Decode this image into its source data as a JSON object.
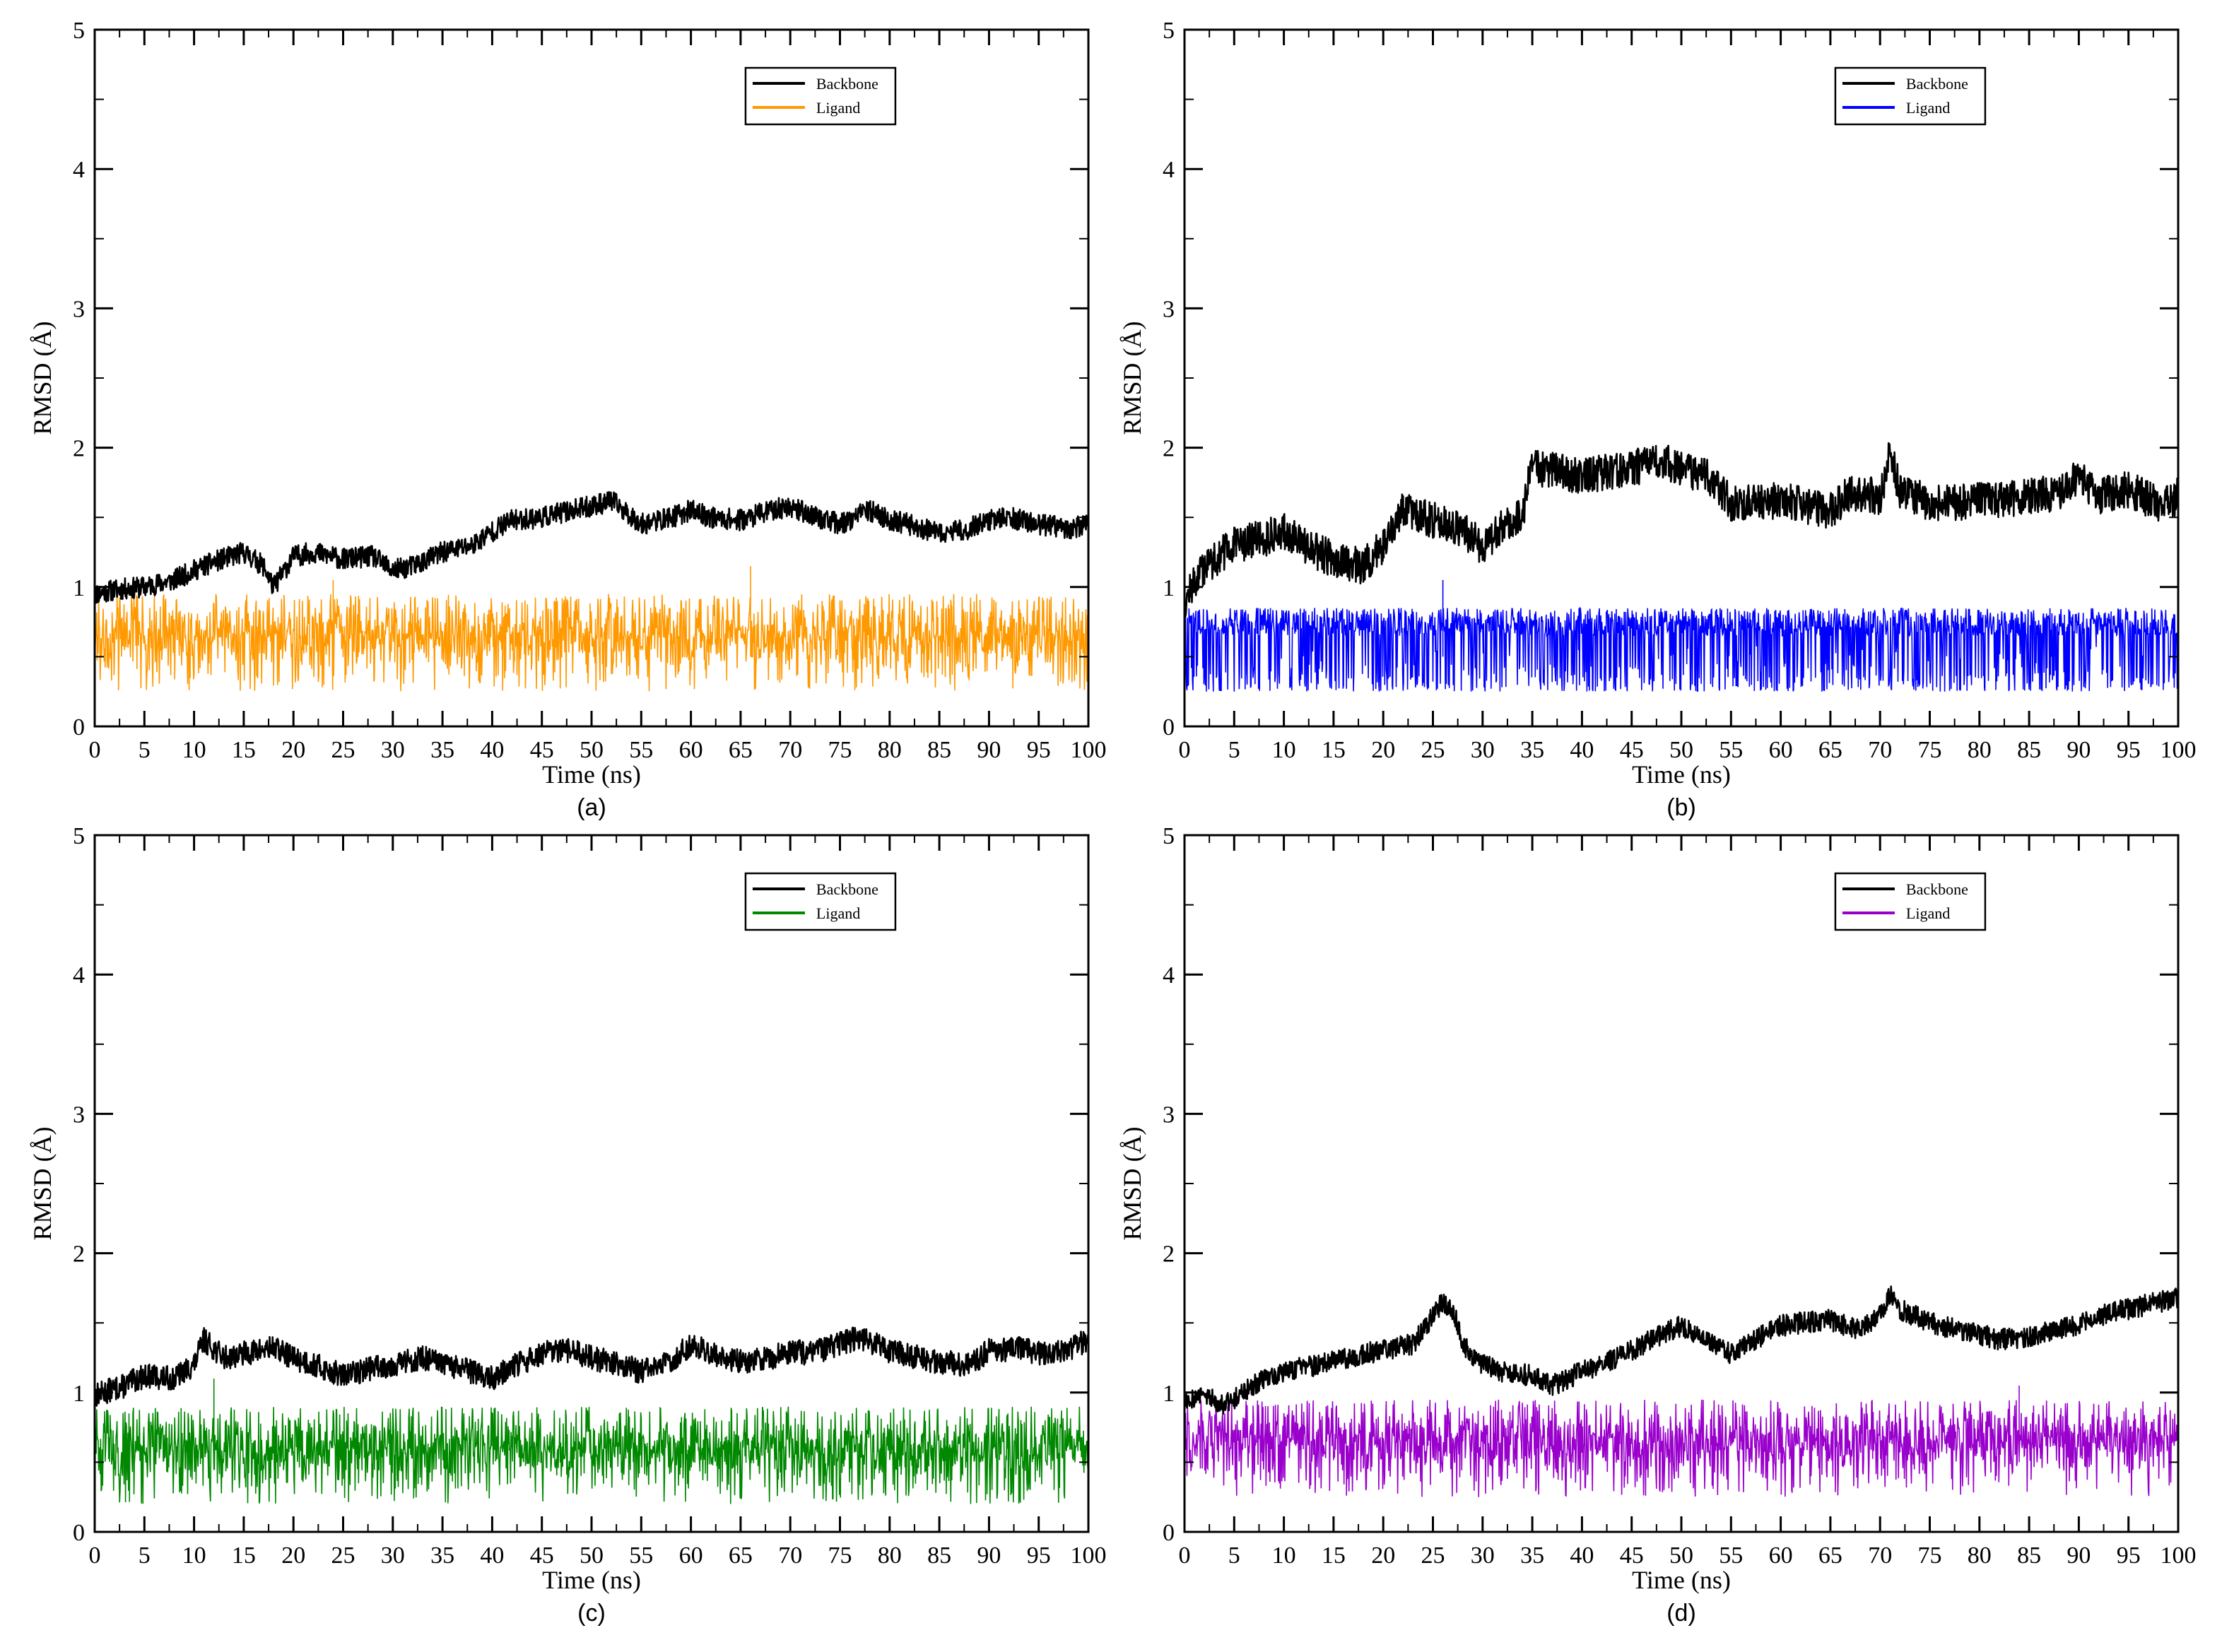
{
  "chart_data": [
    {
      "type": "line",
      "caption": "(a)",
      "xlabel": "Time (ns)",
      "ylabel": "RMSD (Å)",
      "xlim": [
        0,
        100
      ],
      "ylim": [
        0,
        5
      ],
      "xticks": [
        0,
        5,
        10,
        15,
        20,
        25,
        30,
        35,
        40,
        45,
        50,
        55,
        60,
        65,
        70,
        75,
        80,
        85,
        90,
        95,
        100
      ],
      "yticks": [
        0,
        1,
        2,
        3,
        4,
        5
      ],
      "legend_position": "top-right",
      "series": [
        {
          "name": "Backbone",
          "color": "#000000",
          "noise": 0.035,
          "seed": 11,
          "x": [
            0,
            2,
            5,
            8,
            10,
            12,
            15,
            17,
            18,
            20,
            22,
            25,
            28,
            30,
            32,
            35,
            38,
            40,
            42,
            45,
            48,
            50,
            52,
            55,
            58,
            60,
            62,
            65,
            68,
            70,
            72,
            75,
            78,
            80,
            82,
            85,
            88,
            90,
            92,
            95,
            98,
            100
          ],
          "y": [
            0.95,
            0.98,
            1.0,
            1.05,
            1.12,
            1.18,
            1.25,
            1.15,
            1.0,
            1.22,
            1.25,
            1.2,
            1.22,
            1.12,
            1.15,
            1.25,
            1.3,
            1.4,
            1.48,
            1.5,
            1.55,
            1.58,
            1.62,
            1.45,
            1.5,
            1.55,
            1.5,
            1.48,
            1.55,
            1.58,
            1.52,
            1.45,
            1.55,
            1.48,
            1.45,
            1.38,
            1.42,
            1.48,
            1.5,
            1.45,
            1.42,
            1.45
          ]
        },
        {
          "name": "Ligand",
          "color": "#FF9900",
          "band": [
            0.25,
            0.95
          ],
          "seed": 21,
          "spikes": [
            [
              24,
              1.05
            ],
            [
              66,
              1.15
            ]
          ],
          "x": [
            0,
            100
          ],
          "y": [
            0.6,
            0.6
          ]
        }
      ]
    },
    {
      "type": "line",
      "caption": "(b)",
      "xlabel": "Time (ns)",
      "ylabel": "RMSD (Å)",
      "xlim": [
        0,
        100
      ],
      "ylim": [
        0,
        5
      ],
      "xticks": [
        0,
        5,
        10,
        15,
        20,
        25,
        30,
        35,
        40,
        45,
        50,
        55,
        60,
        65,
        70,
        75,
        80,
        85,
        90,
        95,
        100
      ],
      "yticks": [
        0,
        1,
        2,
        3,
        4,
        5
      ],
      "legend_position": "top-right",
      "series": [
        {
          "name": "Backbone",
          "color": "#000000",
          "noise": 0.06,
          "seed": 12,
          "x": [
            0,
            2,
            5,
            8,
            10,
            12,
            15,
            18,
            20,
            21,
            22,
            25,
            28,
            30,
            32,
            34,
            35,
            36,
            40,
            45,
            48,
            50,
            53,
            55,
            60,
            65,
            67,
            70,
            71,
            72,
            75,
            80,
            85,
            88,
            90,
            92,
            95,
            98,
            100
          ],
          "y": [
            0.9,
            1.15,
            1.3,
            1.35,
            1.4,
            1.3,
            1.2,
            1.15,
            1.3,
            1.45,
            1.55,
            1.48,
            1.42,
            1.28,
            1.45,
            1.5,
            1.9,
            1.85,
            1.8,
            1.85,
            1.92,
            1.85,
            1.78,
            1.6,
            1.62,
            1.55,
            1.68,
            1.65,
            1.95,
            1.7,
            1.6,
            1.62,
            1.65,
            1.68,
            1.8,
            1.65,
            1.7,
            1.6,
            1.65
          ]
        },
        {
          "name": "Ligand",
          "color": "#0000FF",
          "bimodal": [
            0.65,
            0.85,
            0.25
          ],
          "seed": 22,
          "spikes": [
            [
              26,
              1.05
            ]
          ],
          "x": [
            0,
            100
          ],
          "y": [
            0.6,
            0.6
          ]
        }
      ]
    },
    {
      "type": "line",
      "caption": "(c)",
      "xlabel": "Time (ns)",
      "ylabel": "RMSD (Å)",
      "xlim": [
        0,
        100
      ],
      "ylim": [
        0,
        5
      ],
      "xticks": [
        0,
        5,
        10,
        15,
        20,
        25,
        30,
        35,
        40,
        45,
        50,
        55,
        60,
        65,
        70,
        75,
        80,
        85,
        90,
        95,
        100
      ],
      "yticks": [
        0,
        1,
        2,
        3,
        4,
        5
      ],
      "legend_position": "top-right",
      "series": [
        {
          "name": "Backbone",
          "color": "#000000",
          "noise": 0.04,
          "seed": 13,
          "x": [
            0,
            3,
            5,
            8,
            10,
            11,
            13,
            15,
            18,
            20,
            22,
            25,
            28,
            30,
            33,
            35,
            38,
            40,
            42,
            45,
            48,
            50,
            53,
            55,
            58,
            60,
            62,
            65,
            68,
            70,
            72,
            75,
            77,
            80,
            83,
            85,
            88,
            90,
            93,
            95,
            98,
            100
          ],
          "y": [
            0.98,
            1.05,
            1.12,
            1.1,
            1.2,
            1.38,
            1.25,
            1.28,
            1.32,
            1.25,
            1.2,
            1.12,
            1.18,
            1.2,
            1.25,
            1.2,
            1.15,
            1.1,
            1.18,
            1.28,
            1.3,
            1.25,
            1.2,
            1.15,
            1.22,
            1.35,
            1.28,
            1.22,
            1.25,
            1.3,
            1.28,
            1.35,
            1.4,
            1.3,
            1.25,
            1.22,
            1.2,
            1.3,
            1.32,
            1.28,
            1.3,
            1.38
          ]
        },
        {
          "name": "Ligand",
          "color": "#008800",
          "band": [
            0.2,
            0.9
          ],
          "seed": 23,
          "spikes": [
            [
              12,
              1.1
            ]
          ],
          "x": [
            0,
            100
          ],
          "y": [
            0.55,
            0.55
          ]
        }
      ]
    },
    {
      "type": "line",
      "caption": "(d)",
      "xlabel": "Time (ns)",
      "ylabel": "RMSD (Å)",
      "xlim": [
        0,
        100
      ],
      "ylim": [
        0,
        5
      ],
      "xticks": [
        0,
        5,
        10,
        15,
        20,
        25,
        30,
        35,
        40,
        45,
        50,
        55,
        60,
        65,
        70,
        75,
        80,
        85,
        90,
        95,
        100
      ],
      "yticks": [
        0,
        1,
        2,
        3,
        4,
        5
      ],
      "legend_position": "top-right",
      "series": [
        {
          "name": "Backbone",
          "color": "#000000",
          "noise": 0.035,
          "seed": 14,
          "x": [
            0,
            2,
            4,
            6,
            8,
            10,
            12,
            15,
            18,
            20,
            23,
            25,
            26,
            27,
            28,
            30,
            32,
            35,
            37,
            40,
            42,
            45,
            48,
            50,
            52,
            55,
            58,
            60,
            62,
            65,
            68,
            70,
            71,
            72,
            75,
            78,
            80,
            82,
            85,
            88,
            90,
            92,
            95,
            98,
            100
          ],
          "y": [
            0.95,
            0.98,
            0.92,
            1.0,
            1.1,
            1.15,
            1.18,
            1.22,
            1.28,
            1.3,
            1.35,
            1.55,
            1.65,
            1.6,
            1.35,
            1.2,
            1.15,
            1.12,
            1.05,
            1.15,
            1.2,
            1.3,
            1.42,
            1.48,
            1.38,
            1.28,
            1.4,
            1.48,
            1.5,
            1.52,
            1.45,
            1.55,
            1.7,
            1.6,
            1.5,
            1.45,
            1.42,
            1.38,
            1.4,
            1.45,
            1.48,
            1.55,
            1.6,
            1.65,
            1.68
          ]
        },
        {
          "name": "Ligand",
          "color": "#9900CC",
          "band": [
            0.25,
            0.95
          ],
          "seed": 24,
          "spikes": [
            [
              84,
              1.05
            ]
          ],
          "x": [
            0,
            100
          ],
          "y": [
            0.6,
            0.6
          ]
        }
      ]
    }
  ]
}
